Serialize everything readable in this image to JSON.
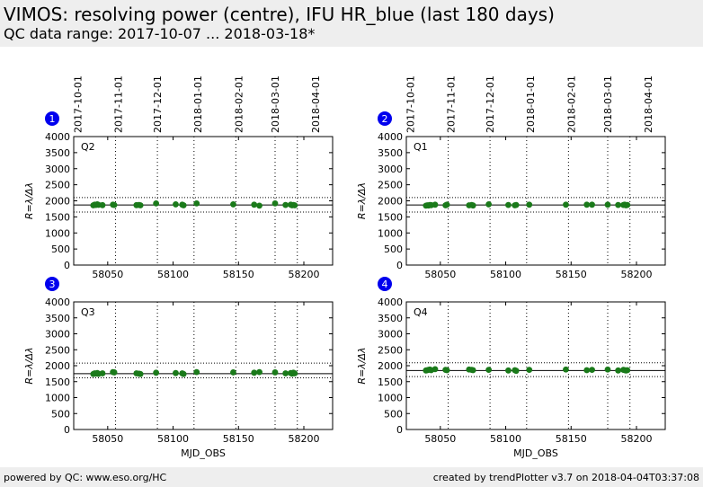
{
  "header": {
    "title": "VIMOS: resolving power (centre), IFU HR_blue (last 180 days)",
    "subtitle": "QC data range: 2017-10-07 ... 2018-03-18*"
  },
  "footer": {
    "left": "powered by QC: www.eso.org/HC",
    "right": "created by trendPlotter v3.7 on 2018-04-04T03:37:08"
  },
  "colors": {
    "header_bg": "#eeeeee",
    "point": "#1a7a1a",
    "badge": "#0000ee"
  },
  "shared_axes": {
    "xlabel": "MJD_OBS",
    "ylabel": "R=λ/Δλ",
    "xlim": [
      58024,
      58222
    ],
    "ylim": [
      0,
      4000
    ],
    "xticks": [
      58050,
      58100,
      58150,
      58200
    ],
    "yticks": [
      0,
      500,
      1000,
      1500,
      2000,
      2500,
      3000,
      3500,
      4000
    ],
    "date_ticks": [
      {
        "label": "2017-10-01",
        "mjd": 58027
      },
      {
        "label": "2017-11-01",
        "mjd": 58058
      },
      {
        "label": "2017-12-01",
        "mjd": 58088
      },
      {
        "label": "2018-01-01",
        "mjd": 58119
      },
      {
        "label": "2018-02-01",
        "mjd": 58150
      },
      {
        "label": "2018-03-01",
        "mjd": 58178
      },
      {
        "label": "2018-04-01",
        "mjd": 58209
      }
    ],
    "vlines_mjd": [
      58056,
      58088,
      58116,
      58148,
      58178,
      58195
    ]
  },
  "chart_data": [
    {
      "type": "scatter",
      "panel": "1",
      "label": "Q2",
      "median": 1870,
      "band": [
        1650,
        2100
      ],
      "x": [
        58039,
        58040,
        58041,
        58042,
        58043,
        58046,
        58054,
        58055,
        58072,
        58074,
        58075,
        58087,
        58102,
        58107,
        58108,
        58118,
        58146,
        58162,
        58166,
        58178,
        58186,
        58190,
        58191,
        58192,
        58193
      ],
      "y": [
        1860,
        1880,
        1870,
        1890,
        1875,
        1865,
        1880,
        1870,
        1865,
        1870,
        1860,
        1920,
        1890,
        1880,
        1860,
        1920,
        1890,
        1880,
        1850,
        1920,
        1870,
        1880,
        1860,
        1870,
        1860
      ]
    },
    {
      "type": "scatter",
      "panel": "2",
      "label": "Q1",
      "median": 1870,
      "band": [
        1650,
        2100
      ],
      "x": [
        58039,
        58040,
        58041,
        58042,
        58043,
        58046,
        58054,
        58055,
        58072,
        58074,
        58075,
        58087,
        58102,
        58107,
        58108,
        58118,
        58146,
        58162,
        58166,
        58178,
        58186,
        58190,
        58191,
        58192,
        58193
      ],
      "y": [
        1850,
        1860,
        1855,
        1870,
        1865,
        1880,
        1860,
        1880,
        1860,
        1870,
        1855,
        1890,
        1870,
        1860,
        1870,
        1880,
        1880,
        1880,
        1880,
        1880,
        1870,
        1870,
        1880,
        1860,
        1870
      ]
    },
    {
      "type": "scatter",
      "panel": "3",
      "label": "Q3",
      "median": 1750,
      "band": [
        1620,
        2080
      ],
      "x": [
        58039,
        58040,
        58041,
        58042,
        58043,
        58046,
        58054,
        58055,
        58072,
        58074,
        58075,
        58087,
        58102,
        58107,
        58108,
        58118,
        58146,
        58162,
        58166,
        58178,
        58186,
        58190,
        58191,
        58192,
        58193
      ],
      "y": [
        1740,
        1760,
        1750,
        1770,
        1745,
        1760,
        1800,
        1790,
        1760,
        1750,
        1740,
        1780,
        1770,
        1760,
        1740,
        1800,
        1790,
        1780,
        1800,
        1790,
        1760,
        1770,
        1750,
        1780,
        1760
      ]
    },
    {
      "type": "scatter",
      "panel": "4",
      "label": "Q4",
      "median": 1850,
      "band": [
        1660,
        2090
      ],
      "x": [
        58039,
        58040,
        58041,
        58042,
        58043,
        58046,
        58054,
        58055,
        58072,
        58074,
        58075,
        58087,
        58102,
        58107,
        58108,
        58118,
        58146,
        58162,
        58166,
        58178,
        58186,
        58190,
        58191,
        58192,
        58193
      ],
      "y": [
        1850,
        1860,
        1870,
        1880,
        1860,
        1890,
        1870,
        1860,
        1880,
        1870,
        1860,
        1870,
        1850,
        1860,
        1840,
        1870,
        1880,
        1860,
        1870,
        1880,
        1850,
        1870,
        1860,
        1850,
        1860
      ]
    }
  ]
}
